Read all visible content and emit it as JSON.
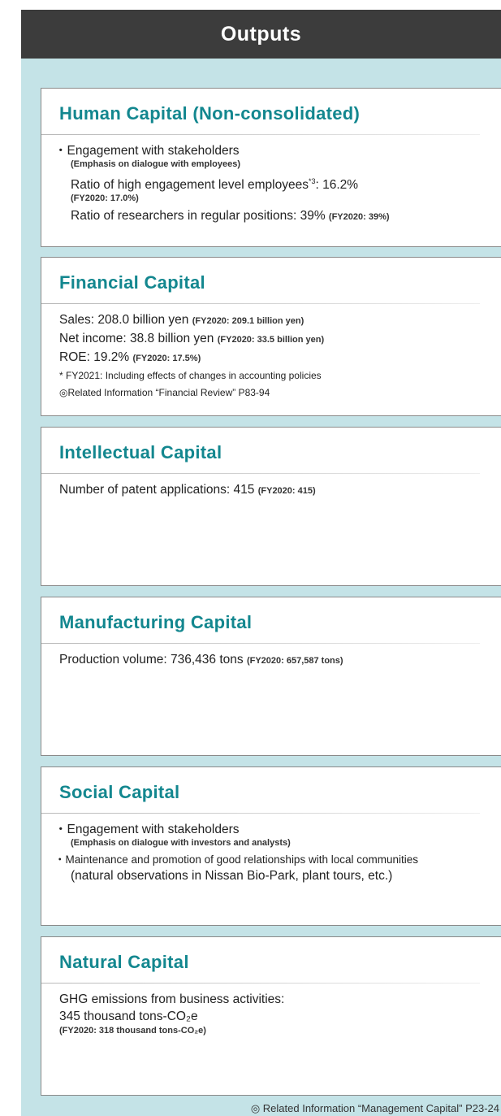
{
  "header": {
    "title": "Outputs"
  },
  "sections": [
    {
      "title": "Human Capital (Non-consolidated)",
      "lines": [
        {
          "style": "bullet",
          "text": "Engagement with stakeholders"
        },
        {
          "style": "indent-small",
          "text": "(Emphasis on dialogue with employees)"
        },
        {
          "style": "indent",
          "text": "Ratio of high engagement level employees",
          "sup": "*3",
          "after": ": 16.2%"
        },
        {
          "style": "indent-small",
          "text": "(FY2020: 17.0%)"
        },
        {
          "style": "indent",
          "text": "Ratio of researchers in regular positions: 39%",
          "note": "(FY2020: 39%)"
        }
      ]
    },
    {
      "title": "Financial Capital",
      "lines": [
        {
          "style": "plain",
          "text": "Sales: 208.0 billion yen",
          "note": "(FY2020: 209.1 billion yen)"
        },
        {
          "style": "plain",
          "text": "Net income: 38.8 billion yen",
          "note": "(FY2020: 33.5 billion yen)"
        },
        {
          "style": "plain",
          "text": "ROE: 19.2%",
          "note": "(FY2020: 17.5%)"
        },
        {
          "style": "small",
          "text": "* FY2021: Including effects of changes in accounting policies"
        },
        {
          "style": "small",
          "text": "◎Related Information “Financial Review” P83-94"
        }
      ]
    },
    {
      "title": "Intellectual Capital",
      "lines": [
        {
          "style": "plain",
          "text": "Number of patent applications: 415",
          "note": "(FY2020: 415)"
        }
      ]
    },
    {
      "title": "Manufacturing Capital",
      "lines": [
        {
          "style": "plain",
          "text": "Production volume: 736,436 tons",
          "note": "(FY2020: 657,587 tons)"
        }
      ]
    },
    {
      "title": "Social Capital",
      "lines": [
        {
          "style": "bullet",
          "text": "Engagement with stakeholders"
        },
        {
          "style": "indent-small",
          "text": "(Emphasis on dialogue with investors and analysts)"
        },
        {
          "style": "bullet-small",
          "text": "Maintenance and promotion of good relationships with local communities"
        },
        {
          "style": "indent",
          "text": "(natural observations in Nissan Bio-Park, plant tours, etc.)"
        }
      ]
    },
    {
      "title": "Natural Capital",
      "lines": [
        {
          "style": "plain",
          "text": "GHG emissions from business activities:"
        },
        {
          "style": "plain",
          "text": "345 thousand tons-CO₂e"
        },
        {
          "style": "tight-small",
          "text": "(FY2020: 318 thousand tons-CO₂e)"
        }
      ]
    }
  ],
  "footer": "◎ Related Information “Management Capital” P23-24"
}
